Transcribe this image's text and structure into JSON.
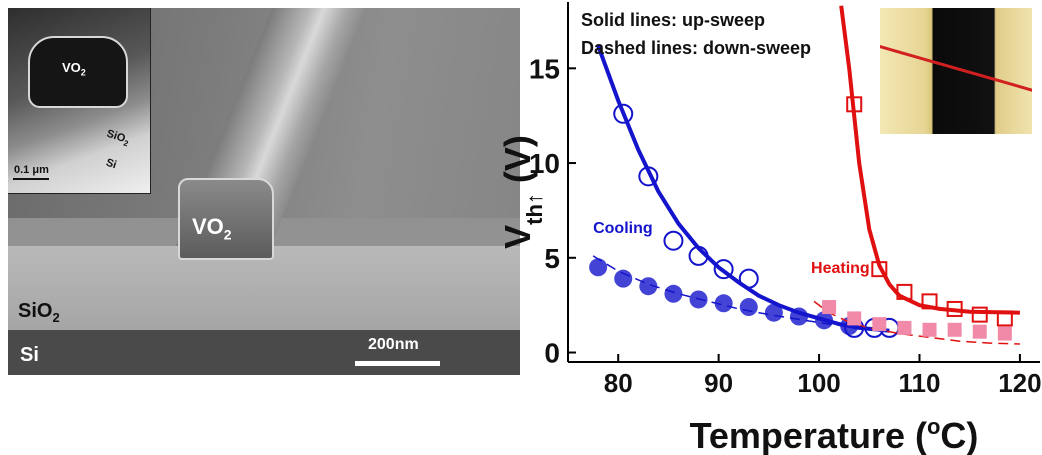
{
  "micrograph": {
    "labels": {
      "vo2": "VO",
      "vo2_sub": "2",
      "sio2": "SiO",
      "sio2_sub": "2",
      "si": "Si",
      "scale": "200nm"
    },
    "inset": {
      "vo2": "VO",
      "vo2_sub": "2",
      "sio2": "SiO",
      "sio2_sub": "2",
      "si": "Si",
      "scale": "0.1 μm"
    }
  },
  "notes": {
    "solid": "Solid lines: up-sweep",
    "dashed": "Dashed lines: down-sweep"
  },
  "chart_data": {
    "type": "scatter",
    "ylabel_main": "V",
    "ylabel_sub": "th↑",
    "ylabel_unit": " (V)",
    "xlabel": "Temperature (",
    "xlabel_deg": "o",
    "xlabel_tail": "C)",
    "xlim": [
      75,
      122
    ],
    "ylim": [
      -0.5,
      18.5
    ],
    "xticks": [
      80,
      90,
      100,
      110,
      120
    ],
    "yticks": [
      0,
      5,
      10,
      15
    ],
    "series": [
      {
        "name": "Cooling",
        "color": "#1414cc",
        "up_points": [
          [
            80.5,
            12.6
          ],
          [
            83,
            9.3
          ],
          [
            85.5,
            5.9
          ],
          [
            88,
            5.1
          ],
          [
            90.5,
            4.4
          ],
          [
            93,
            3.9
          ],
          [
            103.5,
            1.3
          ],
          [
            105.5,
            1.3
          ],
          [
            107,
            1.3
          ]
        ],
        "down_points": [
          [
            78,
            4.5
          ],
          [
            80.5,
            3.9
          ],
          [
            83,
            3.5
          ],
          [
            85.5,
            3.1
          ],
          [
            88,
            2.8
          ],
          [
            90.5,
            2.6
          ],
          [
            93,
            2.4
          ],
          [
            95.5,
            2.1
          ],
          [
            98,
            1.9
          ],
          [
            100.5,
            1.7
          ],
          [
            103,
            1.4
          ]
        ],
        "up_fit": [
          [
            78,
            16.2
          ],
          [
            80,
            13.3
          ],
          [
            82,
            10.7
          ],
          [
            84,
            8.5
          ],
          [
            86,
            6.8
          ],
          [
            88,
            5.5
          ],
          [
            90,
            4.5
          ],
          [
            92,
            3.7
          ],
          [
            94,
            3.0
          ],
          [
            96,
            2.5
          ],
          [
            98,
            2.1
          ],
          [
            100,
            1.8
          ],
          [
            102,
            1.5
          ],
          [
            104,
            1.3
          ],
          [
            106,
            1.2
          ],
          [
            107,
            1.15
          ]
        ],
        "down_fit": [
          [
            77.5,
            5.1
          ],
          [
            80,
            4.3
          ],
          [
            83,
            3.6
          ],
          [
            86,
            3.1
          ],
          [
            89,
            2.7
          ],
          [
            92,
            2.3
          ],
          [
            95,
            2.0
          ],
          [
            98,
            1.75
          ],
          [
            101,
            1.5
          ],
          [
            104,
            1.3
          ],
          [
            107,
            1.1
          ]
        ]
      },
      {
        "name": "Heating",
        "color": "#e01010",
        "down_color": "#f08aa8",
        "up_points": [
          [
            103.5,
            13.1
          ],
          [
            106,
            4.4
          ],
          [
            108.5,
            3.2
          ],
          [
            111,
            2.7
          ],
          [
            113.5,
            2.3
          ],
          [
            116,
            2.0
          ],
          [
            118.5,
            1.8
          ]
        ],
        "down_points": [
          [
            101,
            2.4
          ],
          [
            103.5,
            1.8
          ],
          [
            106,
            1.5
          ],
          [
            108.5,
            1.3
          ],
          [
            111,
            1.2
          ],
          [
            113.5,
            1.2
          ],
          [
            116,
            1.1
          ],
          [
            118.5,
            1.0
          ]
        ],
        "up_fit": [
          [
            102.2,
            18.3
          ],
          [
            103,
            15.0
          ],
          [
            104,
            10.0
          ],
          [
            105,
            6.5
          ],
          [
            106,
            4.6
          ],
          [
            107,
            3.6
          ],
          [
            108,
            3.0
          ],
          [
            110,
            2.5
          ],
          [
            112,
            2.3
          ],
          [
            115,
            2.15
          ],
          [
            120,
            2.1
          ]
        ],
        "down_fit": [
          [
            99.5,
            2.7
          ],
          [
            101,
            2.1
          ],
          [
            103,
            1.6
          ],
          [
            105,
            1.3
          ],
          [
            108,
            1.0
          ],
          [
            111,
            0.8
          ],
          [
            114,
            0.6
          ],
          [
            117,
            0.5
          ],
          [
            120,
            0.45
          ]
        ]
      }
    ]
  }
}
